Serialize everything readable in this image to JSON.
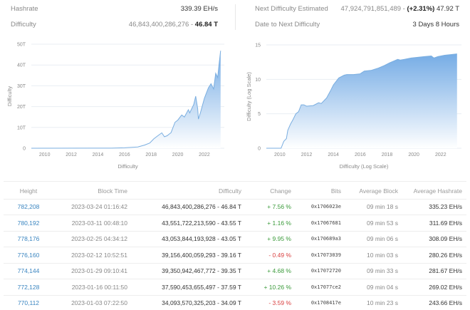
{
  "stats": {
    "hashrate": {
      "label": "Hashrate",
      "value": "339.39 EH/s"
    },
    "difficulty": {
      "label": "Difficulty",
      "value_full": "46,843,400,286,276",
      "separator": " - ",
      "value_short": "46.84 T"
    },
    "next_difficulty": {
      "label": "Next Difficulty Estimated",
      "value_full": "47,924,791,851,489",
      "separator": " - ",
      "change": "(+2.31%)",
      "value_short": "47.92 T"
    },
    "date_to_next": {
      "label": "Date to Next Difficulty",
      "value": "3 Days 8 Hours"
    }
  },
  "colors": {
    "line": "#7aaee0",
    "fill_top": "#6fa8e4",
    "fill_bottom": "#ffffff",
    "link": "#3a85c0",
    "positive": "#3a9a3a",
    "negative": "#d94040",
    "grid": "#e9eef3"
  },
  "chart_data": [
    {
      "type": "area",
      "title": "Difficulty",
      "xlabel": "Difficulty",
      "ylabel": "Difficulty",
      "x_ticks": [
        "2010",
        "2012",
        "2014",
        "2016",
        "2018",
        "2020",
        "2022"
      ],
      "y_ticks": [
        "0",
        "10T",
        "20T",
        "30T",
        "40T",
        "50T"
      ],
      "ylim": [
        0,
        50
      ],
      "y_unit": "T",
      "grid": true,
      "legend": "none",
      "x": [
        2009.0,
        2015.0,
        2016.0,
        2017.0,
        2017.5,
        2017.9,
        2018.2,
        2018.5,
        2018.8,
        2019.0,
        2019.2,
        2019.5,
        2019.8,
        2020.0,
        2020.3,
        2020.5,
        2020.8,
        2020.9,
        2021.2,
        2021.35,
        2021.5,
        2021.55,
        2021.7,
        2022.0,
        2022.3,
        2022.5,
        2022.7,
        2022.85,
        2023.0,
        2023.1,
        2023.22
      ],
      "values": [
        0,
        0.05,
        0.2,
        0.6,
        1.5,
        2.5,
        4.5,
        6.0,
        7.4,
        5.5,
        6.0,
        7.5,
        12.5,
        13.5,
        16.0,
        15.0,
        18.5,
        17.0,
        21.0,
        25.0,
        19.0,
        14.0,
        17.0,
        24.0,
        29.0,
        31.0,
        28.5,
        36.0,
        34.0,
        40.0,
        46.84
      ]
    },
    {
      "type": "area",
      "title": "Difficulty (Log Scale)",
      "xlabel": "Difficulty (Log Scale)",
      "ylabel": "Difficulty (Log Scale)",
      "x_ticks": [
        "2010",
        "2012",
        "2014",
        "2016",
        "2018",
        "2020",
        "2022"
      ],
      "y_ticks": [
        "0",
        "5",
        "10",
        "15"
      ],
      "ylim": [
        0,
        15
      ],
      "grid": true,
      "legend": "none",
      "x": [
        2009.0,
        2010.1,
        2010.3,
        2010.5,
        2010.6,
        2010.8,
        2011.0,
        2011.2,
        2011.4,
        2011.6,
        2011.8,
        2012.0,
        2012.5,
        2012.9,
        2013.1,
        2013.5,
        2013.8,
        2014.0,
        2014.4,
        2014.8,
        2015.0,
        2015.5,
        2016.0,
        2016.3,
        2016.8,
        2017.3,
        2017.8,
        2018.2,
        2018.8,
        2019.0,
        2019.3,
        2019.8,
        2020.3,
        2020.8,
        2021.3,
        2021.5,
        2021.8,
        2022.3,
        2022.8,
        2023.22
      ],
      "values": [
        0,
        0,
        1.0,
        1.4,
        2.6,
        3.5,
        4.2,
        5.0,
        5.3,
        6.3,
        6.3,
        6.1,
        6.2,
        6.6,
        6.5,
        7.3,
        8.4,
        9.2,
        10.2,
        10.6,
        10.7,
        10.7,
        10.8,
        11.2,
        11.3,
        11.6,
        12.0,
        12.4,
        12.9,
        12.8,
        12.9,
        13.1,
        13.2,
        13.3,
        13.4,
        13.1,
        13.3,
        13.5,
        13.6,
        13.7
      ]
    }
  ],
  "table": {
    "headers": [
      "Height",
      "Block Time",
      "Difficulty",
      "Change",
      "Bits",
      "Average Block",
      "Average Hashrate"
    ],
    "rows": [
      {
        "height": "782,208",
        "time": "2023-03-24 01:16:42",
        "difficulty": "46,843,400,286,276 - 46.84 T",
        "change": "+ 7.56 %",
        "sign": "pos",
        "bits": "0x1706023e",
        "avg_block": "09 min 18 s",
        "avg_hashrate": "335.23 EH/s"
      },
      {
        "height": "780,192",
        "time": "2023-03-11 00:48:10",
        "difficulty": "43,551,722,213,590 - 43.55 T",
        "change": "+ 1.16 %",
        "sign": "pos",
        "bits": "0x17067681",
        "avg_block": "09 min 53 s",
        "avg_hashrate": "311.69 EH/s"
      },
      {
        "height": "778,176",
        "time": "2023-02-25 04:34:12",
        "difficulty": "43,053,844,193,928 - 43.05 T",
        "change": "+ 9.95 %",
        "sign": "pos",
        "bits": "0x170689a3",
        "avg_block": "09 min 06 s",
        "avg_hashrate": "308.09 EH/s"
      },
      {
        "height": "776,160",
        "time": "2023-02-12 10:52:51",
        "difficulty": "39,156,400,059,293 - 39.16 T",
        "change": "- 0.49 %",
        "sign": "neg",
        "bits": "0x17073039",
        "avg_block": "10 min 03 s",
        "avg_hashrate": "280.26 EH/s"
      },
      {
        "height": "774,144",
        "time": "2023-01-29 09:10:41",
        "difficulty": "39,350,942,467,772 - 39.35 T",
        "change": "+ 4.68 %",
        "sign": "pos",
        "bits": "0x17072720",
        "avg_block": "09 min 33 s",
        "avg_hashrate": "281.67 EH/s"
      },
      {
        "height": "772,128",
        "time": "2023-01-16 00:11:50",
        "difficulty": "37,590,453,655,497 - 37.59 T",
        "change": "+ 10.26 %",
        "sign": "pos",
        "bits": "0x17077ce2",
        "avg_block": "09 min 04 s",
        "avg_hashrate": "269.02 EH/s"
      },
      {
        "height": "770,112",
        "time": "2023-01-03 07:22:50",
        "difficulty": "34,093,570,325,203 - 34.09 T",
        "change": "- 3.59 %",
        "sign": "neg",
        "bits": "0x1708417e",
        "avg_block": "10 min 23 s",
        "avg_hashrate": "243.66 EH/s"
      }
    ]
  }
}
